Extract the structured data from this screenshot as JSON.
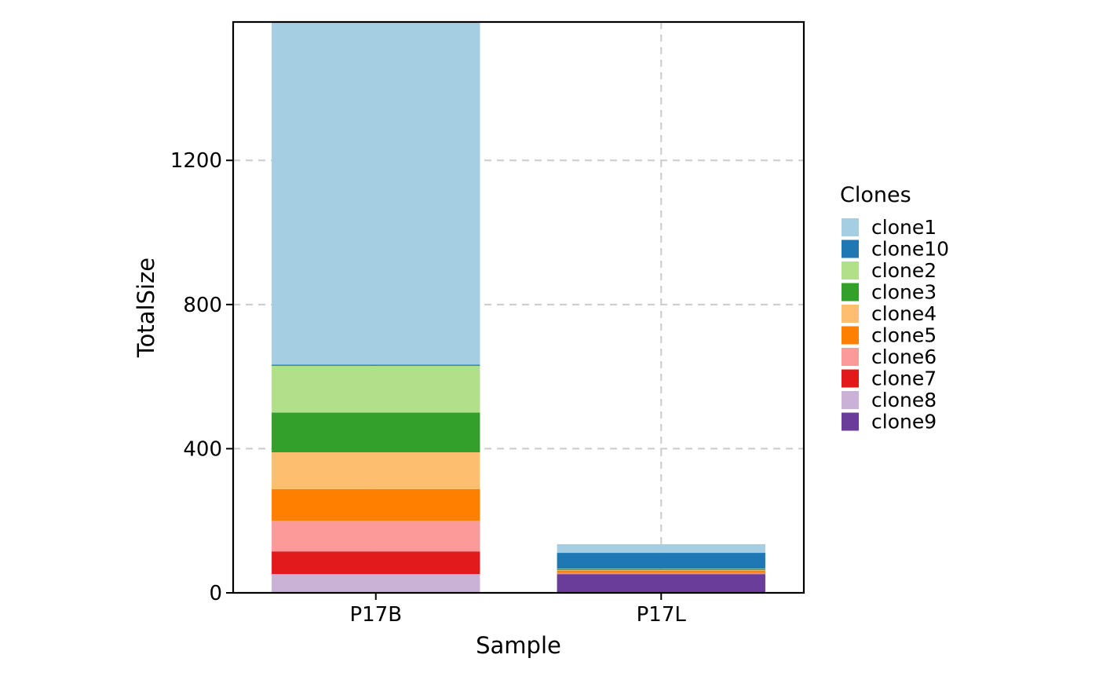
{
  "chart_data": {
    "type": "bar",
    "stacked": true,
    "xlabel": "Sample",
    "ylabel": "TotalSize",
    "categories": [
      "P17B",
      "P17L"
    ],
    "ylim": [
      0,
      1584
    ],
    "yticks": [
      0,
      400,
      800,
      1200
    ],
    "grid": true,
    "legend": {
      "title": "Clones",
      "position": "right"
    },
    "series": [
      {
        "name": "clone1",
        "color": "#A6CEE3",
        "values": [
          951,
          24
        ]
      },
      {
        "name": "clone10",
        "color": "#1F78B4",
        "values": [
          3,
          44
        ]
      },
      {
        "name": "clone2",
        "color": "#B2DF8A",
        "values": [
          130,
          1
        ]
      },
      {
        "name": "clone3",
        "color": "#33A02C",
        "values": [
          110,
          3
        ]
      },
      {
        "name": "clone4",
        "color": "#FDBF6F",
        "values": [
          102,
          2
        ]
      },
      {
        "name": "clone5",
        "color": "#FF7F00",
        "values": [
          88,
          6
        ]
      },
      {
        "name": "clone6",
        "color": "#FB9A99",
        "values": [
          85,
          1
        ]
      },
      {
        "name": "clone7",
        "color": "#E31A1C",
        "values": [
          63,
          1
        ]
      },
      {
        "name": "clone8",
        "color": "#CAB2D6",
        "values": [
          52,
          1
        ]
      },
      {
        "name": "clone9",
        "color": "#6A3D9A",
        "values": [
          0,
          52
        ]
      }
    ]
  }
}
